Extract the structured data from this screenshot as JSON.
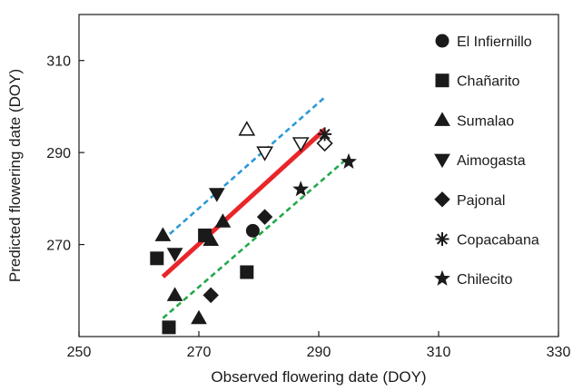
{
  "chart_data": {
    "type": "scatter",
    "xlabel": "Observed flowering date (DOY)",
    "ylabel": "Predicted flowering date (DOY)",
    "xlim": [
      250,
      330
    ],
    "ylim": [
      250,
      320
    ],
    "x_ticks": [
      250,
      270,
      290,
      310,
      330
    ],
    "y_ticks": [
      270,
      290,
      310
    ],
    "x_tick_labels": [
      "250",
      "270",
      "290",
      "310",
      "330"
    ],
    "y_tick_labels": [
      "270",
      "290",
      "310"
    ],
    "grid": false,
    "legend_placement": "right",
    "series": [
      {
        "name": "El Infiernillo",
        "marker": "circle",
        "points": [
          [
            279,
            273
          ]
        ]
      },
      {
        "name": "Chañarito",
        "marker": "square",
        "points": [
          [
            263,
            267
          ],
          [
            265,
            252
          ],
          [
            271,
            272
          ],
          [
            278,
            264
          ]
        ]
      },
      {
        "name": "Sumalao",
        "marker": "triangle-up",
        "points": [
          [
            264,
            272
          ],
          [
            266,
            259
          ],
          [
            270,
            254
          ],
          [
            272,
            271
          ],
          [
            274,
            275
          ],
          [
            278,
            295
          ]
        ],
        "open_points": [
          [
            278,
            295
          ]
        ]
      },
      {
        "name": "Aimogasta",
        "marker": "triangle-down",
        "points": [
          [
            266,
            268
          ],
          [
            273,
            281
          ],
          [
            281,
            290
          ],
          [
            287,
            292
          ]
        ],
        "open_points": [
          [
            281,
            290
          ],
          [
            287,
            292
          ]
        ]
      },
      {
        "name": "Pajonal",
        "marker": "diamond",
        "points": [
          [
            272,
            259
          ],
          [
            281,
            276
          ],
          [
            291,
            292
          ]
        ],
        "open_points": [
          [
            291,
            292
          ]
        ]
      },
      {
        "name": "Copacabana",
        "marker": "asterisk",
        "points": [
          [
            291,
            294
          ]
        ]
      },
      {
        "name": "Chilecito",
        "marker": "star",
        "points": [
          [
            287,
            282
          ],
          [
            295,
            288
          ]
        ]
      }
    ],
    "lines": [
      {
        "color": "#e8262a",
        "style": "solid",
        "from": [
          264,
          263
        ],
        "to": [
          291,
          295
        ]
      },
      {
        "color": "#2a9ad6",
        "style": "dashed",
        "from": [
          264,
          271
        ],
        "to": [
          291,
          302
        ]
      },
      {
        "color": "#23a84b",
        "style": "dashed",
        "from": [
          264,
          254
        ],
        "to": [
          295,
          289
        ]
      }
    ]
  }
}
